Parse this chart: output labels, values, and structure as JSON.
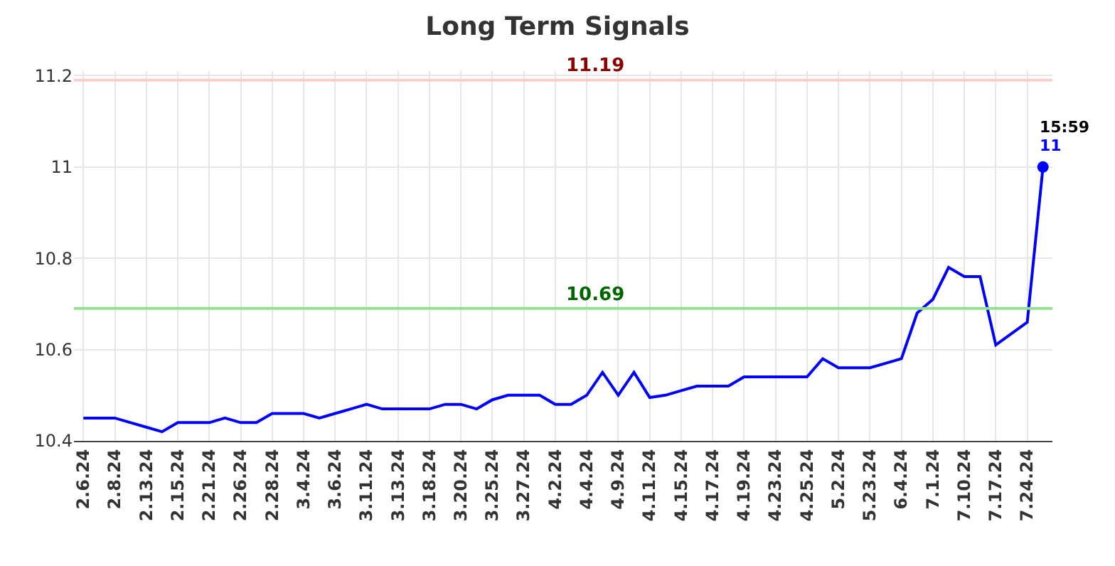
{
  "chart_data": {
    "type": "line",
    "title": "Long Term Signals",
    "categories": [
      "2.6.24",
      null,
      "2.8.24",
      null,
      "2.13.24",
      null,
      "2.15.24",
      null,
      "2.21.24",
      null,
      "2.26.24",
      null,
      "2.28.24",
      null,
      "3.4.24",
      null,
      "3.6.24",
      null,
      "3.11.24",
      null,
      "3.13.24",
      null,
      "3.18.24",
      null,
      "3.20.24",
      null,
      "3.25.24",
      null,
      "3.27.24",
      null,
      "4.2.24",
      null,
      "4.4.24",
      null,
      "4.9.24",
      null,
      "4.11.24",
      null,
      "4.15.24",
      null,
      "4.17.24",
      null,
      "4.19.24",
      null,
      "4.23.24",
      null,
      "4.25.24",
      null,
      "5.2.24",
      null,
      "5.23.24",
      null,
      "6.4.24",
      null,
      "7.1.24",
      null,
      "7.10.24",
      null,
      "7.17.24",
      null,
      "7.24.24",
      null
    ],
    "series": [
      {
        "color": "#0000ff",
        "marker": "none",
        "values": [
          10.45,
          10.45,
          10.45,
          10.44,
          10.43,
          10.42,
          10.44,
          10.44,
          10.44,
          10.45,
          10.44,
          10.44,
          10.46,
          10.46,
          10.46,
          10.45,
          10.46,
          10.47,
          10.48,
          10.47,
          10.47,
          10.47,
          10.47,
          10.48,
          10.48,
          10.47,
          10.49,
          10.5,
          10.5,
          10.5,
          10.48,
          10.48,
          10.5,
          10.55,
          10.5,
          10.55,
          10.495,
          10.5,
          10.51,
          10.52,
          10.52,
          10.52,
          10.54,
          10.54,
          10.54,
          10.54,
          10.54,
          10.58,
          10.56,
          10.56,
          10.56,
          10.57,
          10.58,
          10.68,
          10.71,
          10.78,
          10.76,
          10.76,
          10.61,
          10.635,
          10.66,
          11.0
        ]
      },
      {
        "type": "scatter",
        "color": "#0000ff",
        "marker": "circle",
        "values": [
          null,
          null,
          null,
          null,
          null,
          null,
          null,
          null,
          null,
          null,
          null,
          null,
          null,
          null,
          null,
          null,
          null,
          null,
          null,
          null,
          null,
          null,
          null,
          null,
          null,
          null,
          null,
          null,
          null,
          null,
          null,
          null,
          null,
          null,
          null,
          null,
          null,
          null,
          null,
          null,
          null,
          null,
          null,
          null,
          null,
          null,
          null,
          null,
          null,
          null,
          null,
          null,
          null,
          null,
          null,
          null,
          null,
          null,
          null,
          null,
          null,
          11.0
        ]
      }
    ],
    "ylim": [
      10.4,
      11.21
    ],
    "yticks": [
      10.4,
      10.6,
      10.8,
      11,
      11.2
    ],
    "grid": true,
    "ref_lines": [
      {
        "axis": "y",
        "value": 11.19,
        "label": "11.19",
        "color": "#ffcccc"
      },
      {
        "axis": "y",
        "value": 10.69,
        "label": "10.69",
        "color": "#90e090"
      }
    ],
    "annotations": [
      "15:59",
      "11"
    ]
  }
}
